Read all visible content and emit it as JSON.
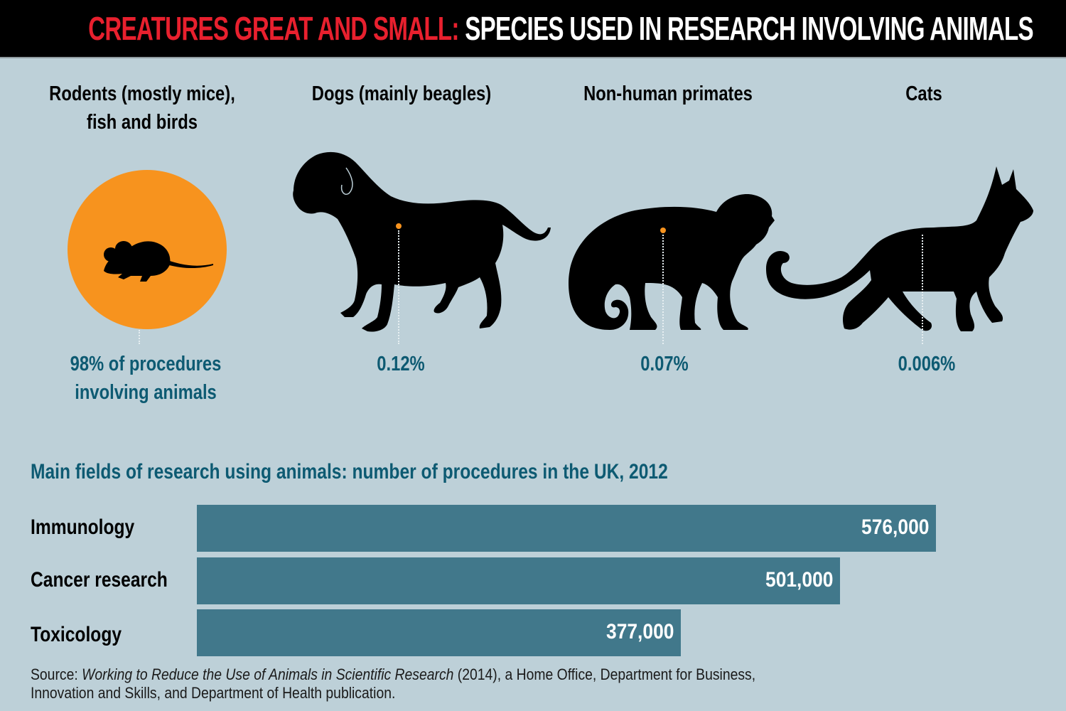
{
  "header": {
    "title_highlight": "CREATURES GREAT AND SMALL:",
    "title_rest": "SPECIES USED IN RESEARCH INVOLVING ANIMALS",
    "colors": {
      "highlight": "#e8202e",
      "rest": "#ffffff",
      "background": "#000000"
    }
  },
  "species": [
    {
      "name_line1": "Rodents (mostly mice),",
      "name_line2": "fish and birds",
      "percent_line1": "98% of procedures",
      "percent_line2": "involving animals",
      "icon": "mouse-icon",
      "value_pct": 98
    },
    {
      "name_line1": "Dogs (mainly beagles)",
      "percent_line1": "0.12%",
      "icon": "dog-icon",
      "value_pct": 0.12
    },
    {
      "name_line1": "Non-human primates",
      "percent_line1": "0.07%",
      "icon": "monkey-icon",
      "value_pct": 0.07
    },
    {
      "name_line1": "Cats",
      "percent_line1": "0.006%",
      "icon": "cat-icon",
      "value_pct": 0.006
    }
  ],
  "colors": {
    "background": "#bdd0d8",
    "accent_orange": "#f7931e",
    "bar": "#41788b",
    "text_teal": "#0d5a72"
  },
  "chart_data": {
    "type": "bar",
    "orientation": "horizontal",
    "title": "Main fields of research using animals: number of procedures in the UK, 2012",
    "categories": [
      "Immunology",
      "Cancer research",
      "Toxicology"
    ],
    "values": [
      576000,
      501000,
      377000
    ],
    "value_labels": [
      "576,000",
      "501,000",
      "377,000"
    ],
    "xlabel": "",
    "ylabel": "",
    "xlim": [
      0,
      576000
    ],
    "grid": false,
    "legend": "none"
  },
  "source": {
    "prefix": "Source: ",
    "title": "Working to Reduce the Use of Animals in Scientific Research",
    "suffix_line1": " (2014), a Home Office, Department for Business,",
    "line2": "Innovation and Skills, and Department of Health publication."
  }
}
